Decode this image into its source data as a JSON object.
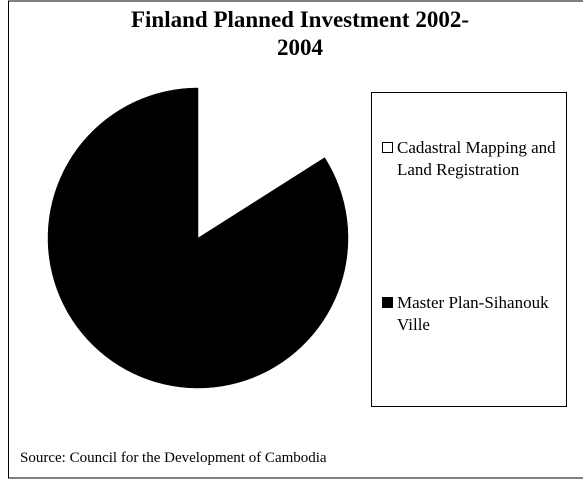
{
  "chart_data": {
    "type": "pie",
    "title": "Finland Planned Investment 2002-2004",
    "categories": [
      "Cadastral Mapping and Land Registration",
      "Master Plan-Sihanouk Ville"
    ],
    "values": [
      16,
      84
    ],
    "colors": [
      "#ffffff",
      "#000000"
    ],
    "legend": "right",
    "source": "Source: Council for the Development of Cambodia"
  }
}
